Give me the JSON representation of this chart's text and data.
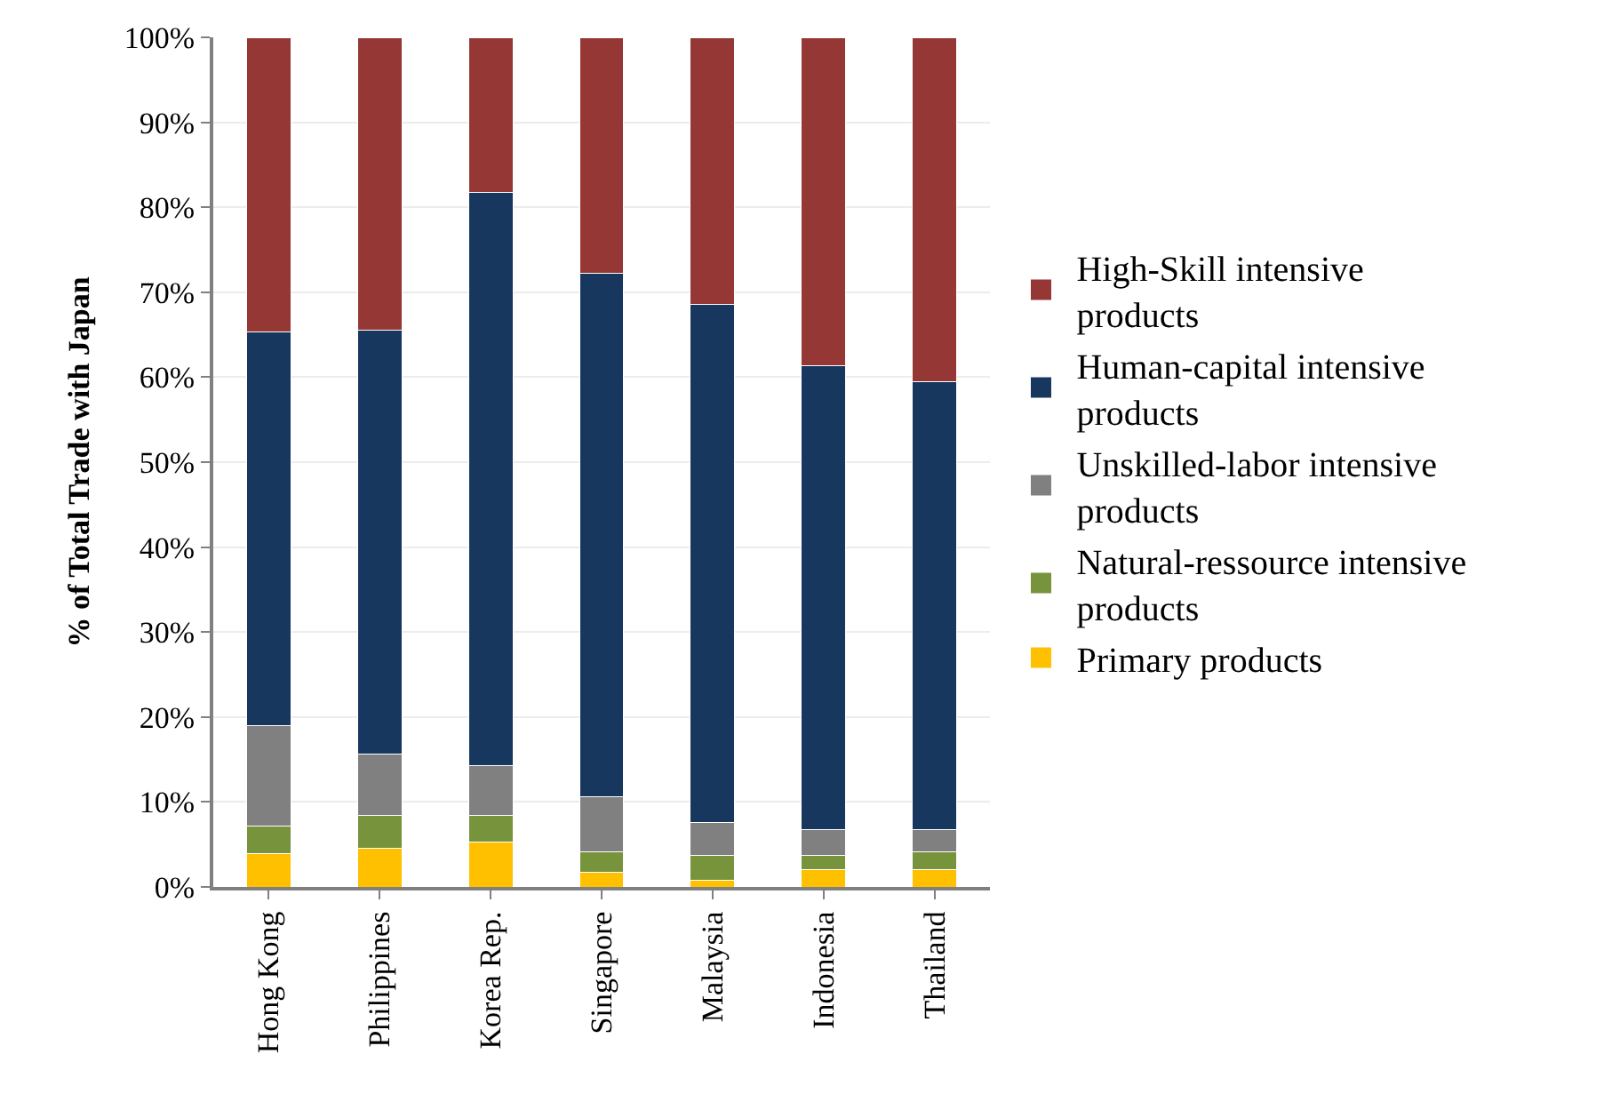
{
  "chart_data": {
    "type": "bar",
    "stacked": true,
    "ylabel": "% of Total Trade with Japan",
    "categories": [
      "Hong Kong",
      "Philippines",
      "Korea Rep.",
      "Singapore",
      "Malaysia",
      "Indonesia",
      "Thailand"
    ],
    "series": [
      {
        "name": "Primary products",
        "color": "#ffc000",
        "values": [
          3.9,
          4.5,
          5.3,
          1.7,
          0.8,
          2.0,
          2.0
        ]
      },
      {
        "name": "Natural-ressource intensive products",
        "color": "#77933c",
        "values": [
          3.3,
          3.9,
          3.1,
          2.4,
          2.9,
          1.7,
          2.1
        ]
      },
      {
        "name": "Unskilled-labor intensive products",
        "color": "#808080",
        "values": [
          11.8,
          7.2,
          5.9,
          6.5,
          3.9,
          3.0,
          2.6
        ]
      },
      {
        "name": "Human-capital intensive products",
        "color": "#17375e",
        "values": [
          46.3,
          49.9,
          67.4,
          61.6,
          61.0,
          54.6,
          52.8
        ]
      },
      {
        "name": "High-Skill intensive products",
        "color": "#953735",
        "values": [
          34.7,
          34.5,
          18.3,
          27.8,
          31.4,
          38.7,
          40.5
        ]
      }
    ],
    "ylim": [
      0,
      100
    ],
    "yticks": [
      {
        "value": 0,
        "label": "0%"
      },
      {
        "value": 10,
        "label": "10%"
      },
      {
        "value": 20,
        "label": "20%"
      },
      {
        "value": 30,
        "label": "30%"
      },
      {
        "value": 40,
        "label": "40%"
      },
      {
        "value": 50,
        "label": "50%"
      },
      {
        "value": 60,
        "label": "60%"
      },
      {
        "value": 70,
        "label": "70%"
      },
      {
        "value": 80,
        "label": "80%"
      },
      {
        "value": 90,
        "label": "90%"
      },
      {
        "value": 100,
        "label": "100%"
      }
    ],
    "grid": "y",
    "legend": "right"
  }
}
